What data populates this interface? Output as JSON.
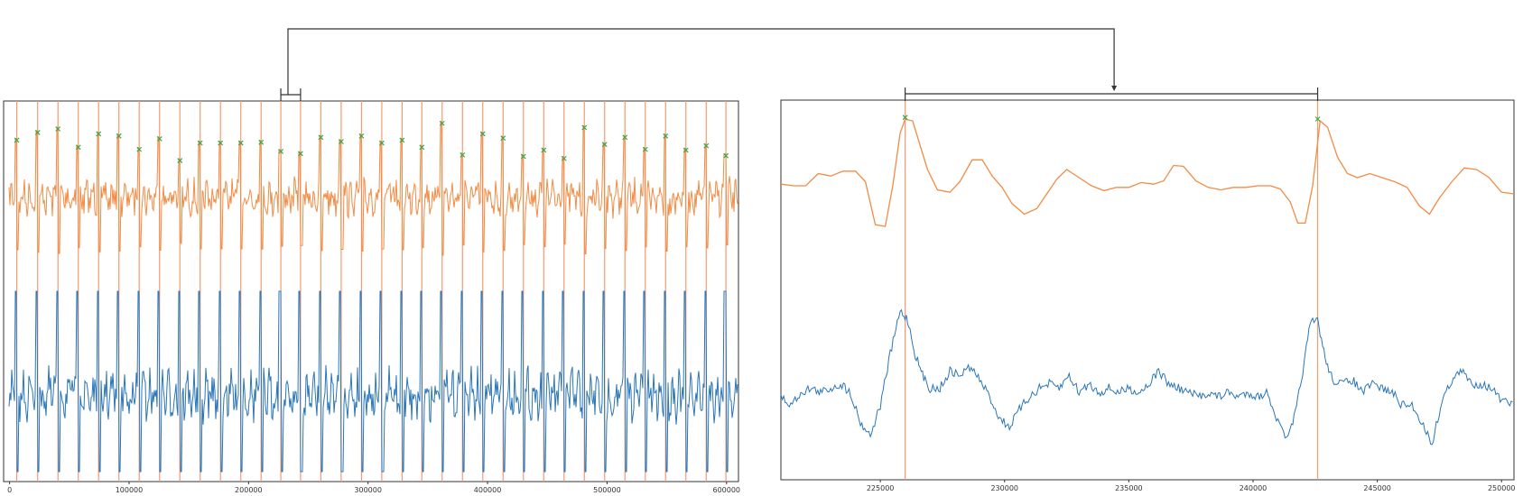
{
  "colors": {
    "orange_trace": "#f28c45",
    "blue_trace": "#2a76b8",
    "marker_line": "#f59a72",
    "peak_marker": "#3aa84a",
    "frame": "#333333",
    "bracket": "#333333"
  },
  "chart_data": [
    {
      "type": "line",
      "panel": "overview",
      "xlim": [
        -5000,
        610000
      ],
      "xticks": [
        0,
        100000,
        200000,
        300000,
        400000,
        500000,
        600000
      ],
      "xtick_labels": [
        "0",
        "100000",
        "200000",
        "300000",
        "400000",
        "500000",
        "600000"
      ],
      "grid": false,
      "series": [
        {
          "role": "processed",
          "color_key": "orange_trace"
        },
        {
          "role": "raw",
          "color_key": "blue_trace"
        }
      ],
      "detected_peaks_x": [
        6000,
        23500,
        40500,
        57500,
        74500,
        91500,
        108500,
        125500,
        142500,
        159500,
        176500,
        193500,
        210500,
        227000,
        243500,
        260500,
        277500,
        294500,
        311500,
        328500,
        345000,
        362000,
        379000,
        396000,
        413000,
        430000,
        447000,
        464000,
        481000,
        498000,
        515000,
        532000,
        549000,
        566000,
        583000,
        599500
      ],
      "detected_peaks_level": [
        0.84,
        0.95,
        1.0,
        0.74,
        0.93,
        0.9,
        0.71,
        0.86,
        0.55,
        0.8,
        0.8,
        0.8,
        0.81,
        0.68,
        0.65,
        0.88,
        0.82,
        0.9,
        0.8,
        0.84,
        0.74,
        1.08,
        0.63,
        0.93,
        0.87,
        0.61,
        0.7,
        0.58,
        1.02,
        0.78,
        0.88,
        0.71,
        0.9,
        0.7,
        0.76,
        0.62
      ],
      "zoom_window_x": [
        227000,
        243500
      ]
    },
    {
      "type": "line",
      "panel": "zoom",
      "xlim": [
        221000,
        250500
      ],
      "xticks": [
        225000,
        230000,
        235000,
        240000,
        245000,
        250000
      ],
      "xtick_labels": [
        "225000",
        "230000",
        "235000",
        "240000",
        "245000",
        "250000"
      ],
      "grid": false,
      "detected_peaks_x": [
        226000,
        242600
      ],
      "series": [
        {
          "role": "processed",
          "color_key": "orange_trace",
          "x": [
            221000,
            221500,
            222000,
            222500,
            223000,
            223500,
            224000,
            224400,
            224800,
            225200,
            225500,
            225800,
            226000,
            226300,
            226600,
            226900,
            227300,
            227800,
            228200,
            228700,
            229100,
            229500,
            229900,
            230300,
            230800,
            231300,
            231700,
            232100,
            232500,
            233000,
            233500,
            234000,
            234500,
            235000,
            235500,
            236000,
            236400,
            236800,
            237200,
            237700,
            238200,
            238700,
            239200,
            239700,
            240200,
            240700,
            241100,
            241500,
            241800,
            242100,
            242400,
            242700,
            243000,
            243400,
            243800,
            244200,
            244700,
            245200,
            245700,
            246200,
            246700,
            247100,
            247500,
            248000,
            248500,
            249000,
            249500,
            250000,
            250500
          ],
          "values": [
            0.12,
            0.1,
            0.1,
            0.25,
            0.22,
            0.28,
            0.28,
            0.15,
            -0.38,
            -0.4,
            0.1,
            0.75,
            0.92,
            0.9,
            0.6,
            0.3,
            0.05,
            0.02,
            0.15,
            0.42,
            0.42,
            0.22,
            0.08,
            -0.12,
            -0.25,
            -0.18,
            0.0,
            0.18,
            0.3,
            0.2,
            0.1,
            0.04,
            0.08,
            0.08,
            0.14,
            0.12,
            0.16,
            0.35,
            0.34,
            0.16,
            0.08,
            0.05,
            0.08,
            0.08,
            0.1,
            0.1,
            0.06,
            -0.1,
            -0.36,
            -0.36,
            0.1,
            0.9,
            0.82,
            0.45,
            0.25,
            0.2,
            0.25,
            0.2,
            0.15,
            0.08,
            -0.15,
            -0.25,
            -0.05,
            0.15,
            0.32,
            0.3,
            0.2,
            0.02,
            0.0
          ]
        },
        {
          "role": "raw",
          "color_key": "blue_trace",
          "x": [
            221000,
            221400,
            221800,
            222200,
            222600,
            223000,
            223400,
            223800,
            224200,
            224600,
            225000,
            225400,
            225800,
            226100,
            226400,
            226700,
            227000,
            227400,
            227800,
            228200,
            228600,
            229000,
            229400,
            229800,
            230200,
            230600,
            231000,
            231400,
            231800,
            232200,
            232600,
            233000,
            233400,
            233800,
            234200,
            234600,
            235000,
            235400,
            235800,
            236200,
            236600,
            237000,
            237400,
            237800,
            238200,
            238600,
            239000,
            239400,
            239800,
            240200,
            240600,
            241000,
            241400,
            241700,
            242000,
            242300,
            242600,
            242900,
            243200,
            243600,
            244000,
            244400,
            244800,
            245200,
            245600,
            246000,
            246400,
            246800,
            247200,
            247600,
            248000,
            248400,
            248800,
            249200,
            249600,
            250000,
            250500
          ],
          "values": [
            0.0,
            -0.1,
            0.05,
            0.1,
            0.05,
            0.1,
            0.15,
            0.05,
            -0.3,
            -0.45,
            -0.1,
            0.5,
            1.0,
            0.9,
            0.5,
            0.25,
            0.1,
            0.1,
            0.3,
            0.25,
            0.35,
            0.2,
            0.0,
            -0.25,
            -0.35,
            -0.15,
            0.0,
            0.1,
            0.15,
            0.1,
            0.25,
            0.05,
            0.15,
            0.05,
            0.1,
            0.05,
            0.1,
            0.05,
            0.15,
            0.3,
            0.15,
            0.1,
            0.05,
            0.0,
            0.05,
            0.0,
            0.05,
            0.0,
            0.05,
            0.0,
            0.05,
            -0.3,
            -0.5,
            -0.2,
            0.3,
            0.85,
            0.9,
            0.45,
            0.2,
            0.15,
            0.2,
            0.05,
            0.15,
            0.1,
            0.05,
            -0.1,
            -0.1,
            -0.3,
            -0.55,
            -0.05,
            0.2,
            0.3,
            0.15,
            0.15,
            0.1,
            -0.05,
            -0.1
          ]
        }
      ]
    }
  ]
}
